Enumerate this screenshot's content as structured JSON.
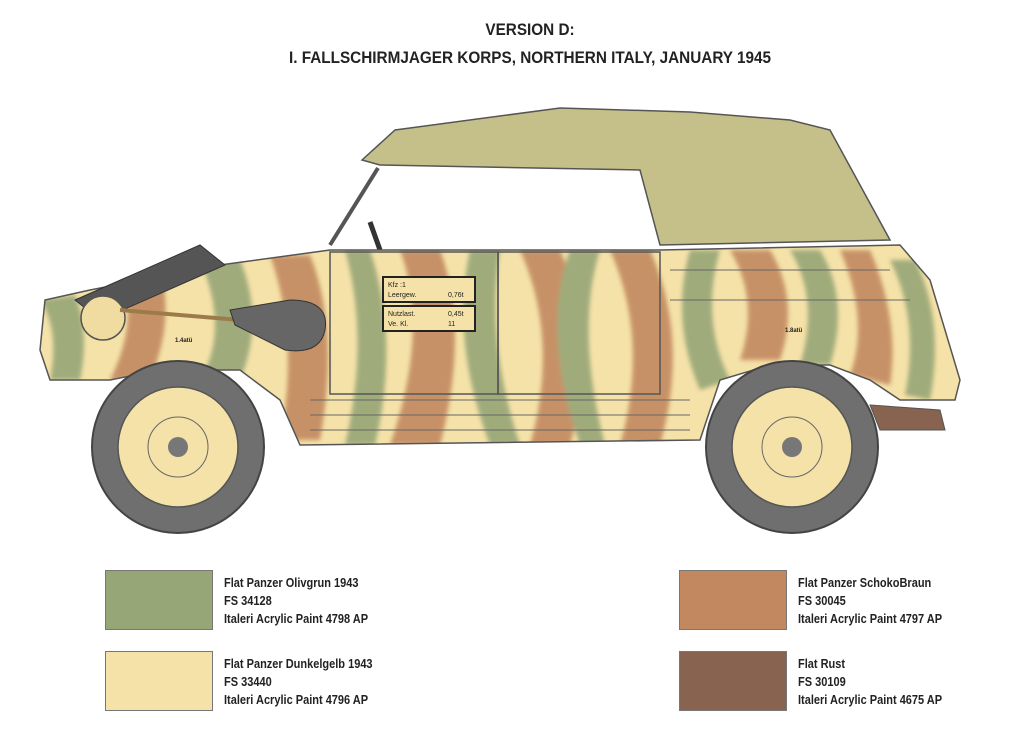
{
  "title": {
    "line1": "VERSION D:",
    "line2": "I. FALLSCHIRMJAGER KORPS, NORTHERN ITALY, JANUARY 1945"
  },
  "vehicle": {
    "plate_top": {
      "kfz": "Kfz   :1",
      "leergew_label": "Leergew.",
      "leergew_value": "0,76t"
    },
    "plate_bottom": {
      "nutzlast_label": "Nutzlast.",
      "nutzlast_value": "0,45t",
      "ve_label": "Ve.  Kl.",
      "ve_value": "11"
    },
    "tire_front": "1.4atü",
    "tire_rear": "1.8atü"
  },
  "colors": {
    "olive": "#97a677",
    "sand": "#f5e2a8",
    "brown": "#c28961",
    "rust": "#876350",
    "canvas": "#c5c08a"
  },
  "legend": [
    {
      "name": "Flat Panzer Olivgrun 1943",
      "fs": "FS 34128",
      "paint": "Italeri Acrylic Paint 4798 AP",
      "color": "#97a677"
    },
    {
      "name": "Flat Panzer Dunkelgelb 1943",
      "fs": "FS 33440",
      "paint": "Italeri Acrylic Paint 4796 AP",
      "color": "#f5e2a8"
    },
    {
      "name": "Flat Panzer SchokoBraun",
      "fs": "FS  30045",
      "paint": "Italeri Acrylic Paint 4797 AP",
      "color": "#c28961"
    },
    {
      "name": "Flat Rust",
      "fs": "FS 30109",
      "paint": "Italeri Acrylic Paint 4675 AP",
      "color": "#876350"
    }
  ]
}
